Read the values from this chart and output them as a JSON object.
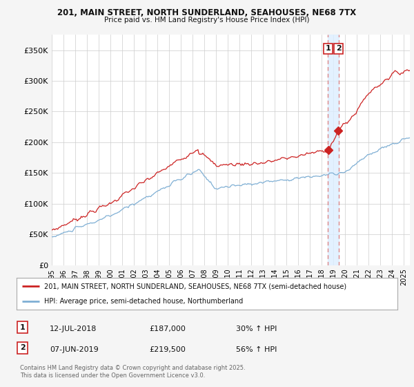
{
  "title1": "201, MAIN STREET, NORTH SUNDERLAND, SEAHOUSES, NE68 7TX",
  "title2": "Price paid vs. HM Land Registry's House Price Index (HPI)",
  "ylabel_ticks": [
    "£0",
    "£50K",
    "£100K",
    "£150K",
    "£200K",
    "£250K",
    "£300K",
    "£350K"
  ],
  "ytick_values": [
    0,
    50000,
    100000,
    150000,
    200000,
    250000,
    300000,
    350000
  ],
  "ylim": [
    0,
    375000
  ],
  "xlim_start": 1995.0,
  "xlim_end": 2025.5,
  "legend1": "201, MAIN STREET, NORTH SUNDERLAND, SEAHOUSES, NE68 7TX (semi-detached house)",
  "legend2": "HPI: Average price, semi-detached house, Northumberland",
  "property_color": "#cc2222",
  "hpi_color": "#7fafd4",
  "vline_color": "#dd8888",
  "vband_color": "#ddeeff",
  "note1_num": "1",
  "note1_date": "12-JUL-2018",
  "note1_price": "£187,000",
  "note1_hpi": "30% ↑ HPI",
  "note2_num": "2",
  "note2_date": "07-JUN-2019",
  "note2_price": "£219,500",
  "note2_hpi": "56% ↑ HPI",
  "vline1_x": 2018.53,
  "vline2_x": 2019.43,
  "trans1_price": 187000,
  "trans2_price": 219500,
  "footnote": "Contains HM Land Registry data © Crown copyright and database right 2025.\nThis data is licensed under the Open Government Licence v3.0.",
  "background_color": "#f5f5f5",
  "plot_bg_color": "#ffffff",
  "grid_color": "#cccccc"
}
